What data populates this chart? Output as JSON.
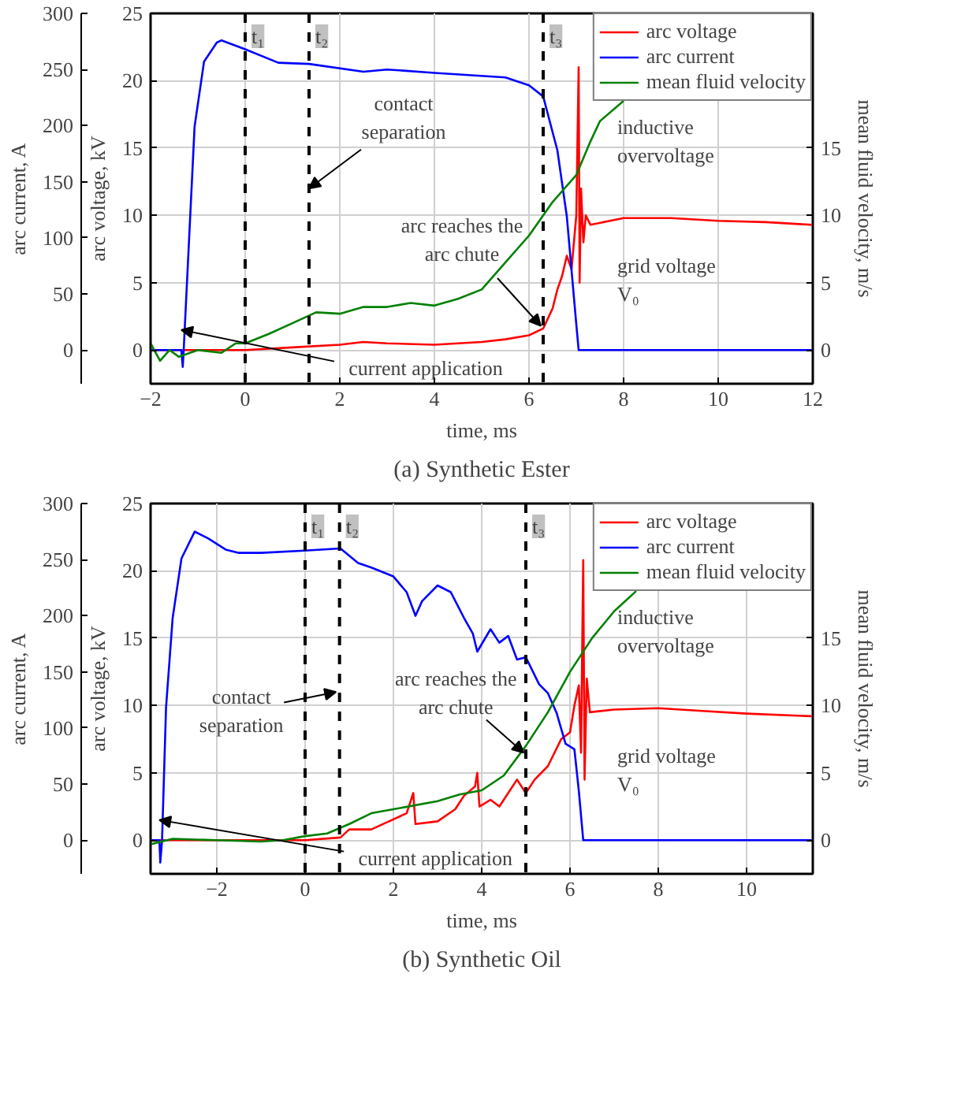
{
  "chart_data": [
    {
      "type": "line",
      "title": "(a) Synthetic Ester",
      "xlabel": "time, ms",
      "ylabel": "arc voltage, kV",
      "y2label": "arc current, A",
      "y3label": "mean fluid velocity, m/s",
      "xlim": [
        -2,
        12
      ],
      "xticks": [
        -2,
        0,
        2,
        4,
        6,
        8,
        10,
        12
      ],
      "ylim": [
        -2.5,
        25
      ],
      "yticks": [
        0,
        5,
        10,
        15,
        20,
        25
      ],
      "y2lim": [
        -30,
        300
      ],
      "y2ticks": [
        0,
        50,
        100,
        150,
        200,
        250,
        300
      ],
      "y3lim": [
        -2.5,
        25
      ],
      "y3ticks": [
        0,
        5,
        10,
        15
      ],
      "grid": true,
      "legend": "top right",
      "marker": "none",
      "line_style": "solid",
      "series": [
        {
          "name": "arc voltage",
          "color": "#ff0000",
          "x": [
            -2,
            0,
            1,
            2,
            2.5,
            3,
            4,
            5,
            5.5,
            6,
            6.3,
            6.5,
            6.6,
            6.7,
            6.8,
            6.9,
            7.0,
            7.05,
            7.07,
            7.1,
            7.15,
            7.2,
            7.3,
            8,
            9,
            10,
            11,
            12
          ],
          "values": [
            0,
            0,
            0.2,
            0.4,
            0.6,
            0.5,
            0.4,
            0.6,
            0.8,
            1.1,
            1.6,
            3.1,
            4.5,
            5.5,
            7,
            6,
            10,
            21,
            5,
            12,
            8,
            10,
            9.3,
            9.8,
            9.8,
            9.6,
            9.5,
            9.3
          ]
        },
        {
          "name": "arc current",
          "color": "#0000ff",
          "axis": "y2",
          "x": [
            -2,
            -1.35,
            -1.32,
            -1.3,
            -1.07,
            -0.87,
            -0.6,
            -0.5,
            0,
            0.7,
            1.35,
            2.5,
            3,
            4,
            5.5,
            6.0,
            6.3,
            6.6,
            6.8,
            7.0,
            7.05,
            8,
            10,
            12
          ],
          "values": [
            0,
            0,
            -15,
            0,
            199,
            257,
            274,
            276,
            268,
            256,
            255,
            248,
            250,
            247,
            243,
            236,
            226,
            178,
            119,
            23,
            0,
            0,
            0,
            0
          ]
        },
        {
          "name": "mean fluid velocity",
          "color": "#008000",
          "axis": "y3",
          "x": [
            -2,
            -1.8,
            -1.6,
            -1.4,
            -1,
            -0.5,
            -0.2,
            0,
            0.5,
            1,
            1.5,
            2,
            2.5,
            3,
            3.5,
            4,
            4.5,
            5,
            5.5,
            6,
            6.5,
            7,
            7.3,
            7.5,
            8
          ],
          "values": [
            0.5,
            -0.8,
            0,
            -0.5,
            0,
            -0.2,
            0.5,
            0.5,
            1.2,
            2,
            2.8,
            2.7,
            3.2,
            3.2,
            3.5,
            3.3,
            3.8,
            4.5,
            6.5,
            8.5,
            11,
            13,
            15.5,
            17,
            18.5
          ]
        }
      ],
      "ref_lines": [
        {
          "axis": "x",
          "value": 0,
          "label": "t₁",
          "color": "#000000",
          "line_style": "dashed"
        },
        {
          "axis": "x",
          "value": 1.35,
          "label": "t₂",
          "color": "#000000",
          "line_style": "dashed"
        },
        {
          "axis": "x",
          "value": 6.3,
          "label": "t₃",
          "color": "#000000",
          "line_style": "dashed"
        }
      ],
      "annotations": [
        {
          "text": "current application",
          "x": -1.35,
          "y": 1.5
        },
        {
          "text": "contact separation",
          "x": 1.35,
          "y": 12
        },
        {
          "text": "arc reaches the arc chute",
          "x": 6.25,
          "y": 1.8
        },
        "inductive overvoltage",
        "grid voltage V₀"
      ]
    },
    {
      "type": "line",
      "title": "(b) Synthetic Oil",
      "xlabel": "time, ms",
      "ylabel": "arc voltage, kV",
      "y2label": "arc current, A",
      "y3label": "mean fluid velocity, m/s",
      "xlim": [
        -3.5,
        11.5
      ],
      "xticks": [
        -2,
        0,
        2,
        4,
        6,
        8,
        10
      ],
      "ylim": [
        -2.5,
        25
      ],
      "yticks": [
        0,
        5,
        10,
        15,
        20,
        25
      ],
      "y2lim": [
        -30,
        300
      ],
      "y2ticks": [
        0,
        50,
        100,
        150,
        200,
        250,
        300
      ],
      "y3lim": [
        -2.5,
        25
      ],
      "y3ticks": [
        0,
        5,
        10,
        15
      ],
      "grid": true,
      "legend": "top right",
      "marker": "none",
      "line_style": "solid",
      "series": [
        {
          "name": "arc voltage",
          "color": "#ff0000",
          "x": [
            -3.5,
            0,
            0.8,
            1,
            1.5,
            1.9,
            2.3,
            2.45,
            2.5,
            3,
            3.4,
            3.6,
            3.85,
            3.9,
            3.95,
            4.2,
            4.4,
            4.6,
            4.8,
            5,
            5.2,
            5.5,
            5.8,
            6,
            6.1,
            6.2,
            6.25,
            6.3,
            6.33,
            6.38,
            6.45,
            7,
            8,
            9,
            10,
            11.5
          ],
          "values": [
            0,
            0,
            0.2,
            0.8,
            0.8,
            1.4,
            2,
            3.5,
            1.2,
            1.4,
            2.3,
            3.3,
            4,
            5,
            2.5,
            3,
            2.5,
            3.5,
            4.5,
            3.5,
            4.5,
            5.5,
            7.5,
            8,
            10,
            11.5,
            6.5,
            20.8,
            4.5,
            12,
            9.5,
            9.7,
            9.8,
            9.6,
            9.4,
            9.2
          ]
        },
        {
          "name": "arc current",
          "color": "#0000ff",
          "axis": "y2",
          "x": [
            -3.5,
            -3.3,
            -3.28,
            -3.24,
            -3.15,
            -3.0,
            -2.8,
            -2.5,
            -2.2,
            -1.8,
            -1.5,
            -1,
            0,
            0.8,
            1.2,
            1.5,
            2,
            2.3,
            2.5,
            2.65,
            3,
            3.3,
            3.6,
            3.8,
            3.9,
            4.2,
            4.4,
            4.6,
            4.8,
            5,
            5.3,
            5.5,
            5.7,
            5.9,
            6.1,
            6.2,
            6.3,
            8,
            10,
            11.5
          ],
          "values": [
            0,
            0,
            -20,
            0,
            118,
            198,
            251,
            275,
            269,
            259,
            256,
            256,
            258,
            260,
            247,
            243,
            235,
            221,
            200,
            213,
            227,
            221,
            198,
            184,
            168,
            188,
            176,
            182,
            161,
            163,
            139,
            131,
            113,
            86,
            81,
            44,
            0,
            0,
            0,
            0
          ]
        },
        {
          "name": "mean fluid velocity",
          "color": "#008000",
          "axis": "y3",
          "x": [
            -3.5,
            -3,
            -2,
            -1,
            -0.5,
            0,
            0.5,
            1,
            1.5,
            2,
            3,
            3.5,
            4,
            4.5,
            5,
            5.5,
            6,
            6.5,
            7,
            7.5
          ],
          "values": [
            -0.3,
            0.1,
            0,
            -0.1,
            0,
            0.3,
            0.5,
            1.2,
            2,
            2.3,
            2.9,
            3.4,
            3.7,
            4.8,
            7,
            9.5,
            12.5,
            15,
            17,
            18.5
          ]
        }
      ],
      "ref_lines": [
        {
          "axis": "x",
          "value": 0,
          "label": "t₁",
          "color": "#000000",
          "line_style": "dashed"
        },
        {
          "axis": "x",
          "value": 0.78,
          "label": "t₂",
          "color": "#000000",
          "line_style": "dashed"
        },
        {
          "axis": "x",
          "value": 5.0,
          "label": "t₃",
          "color": "#000000",
          "line_style": "dashed"
        }
      ],
      "annotations": [
        {
          "text": "current application",
          "x": -3.3,
          "y": 1.5
        },
        {
          "text": "contact separation",
          "x": 0.7,
          "y": 11
        },
        {
          "text": "arc reaches the arc chute",
          "x": 4.95,
          "y": 6.5
        },
        "inductive overvoltage",
        "grid voltage V₀"
      ]
    }
  ]
}
